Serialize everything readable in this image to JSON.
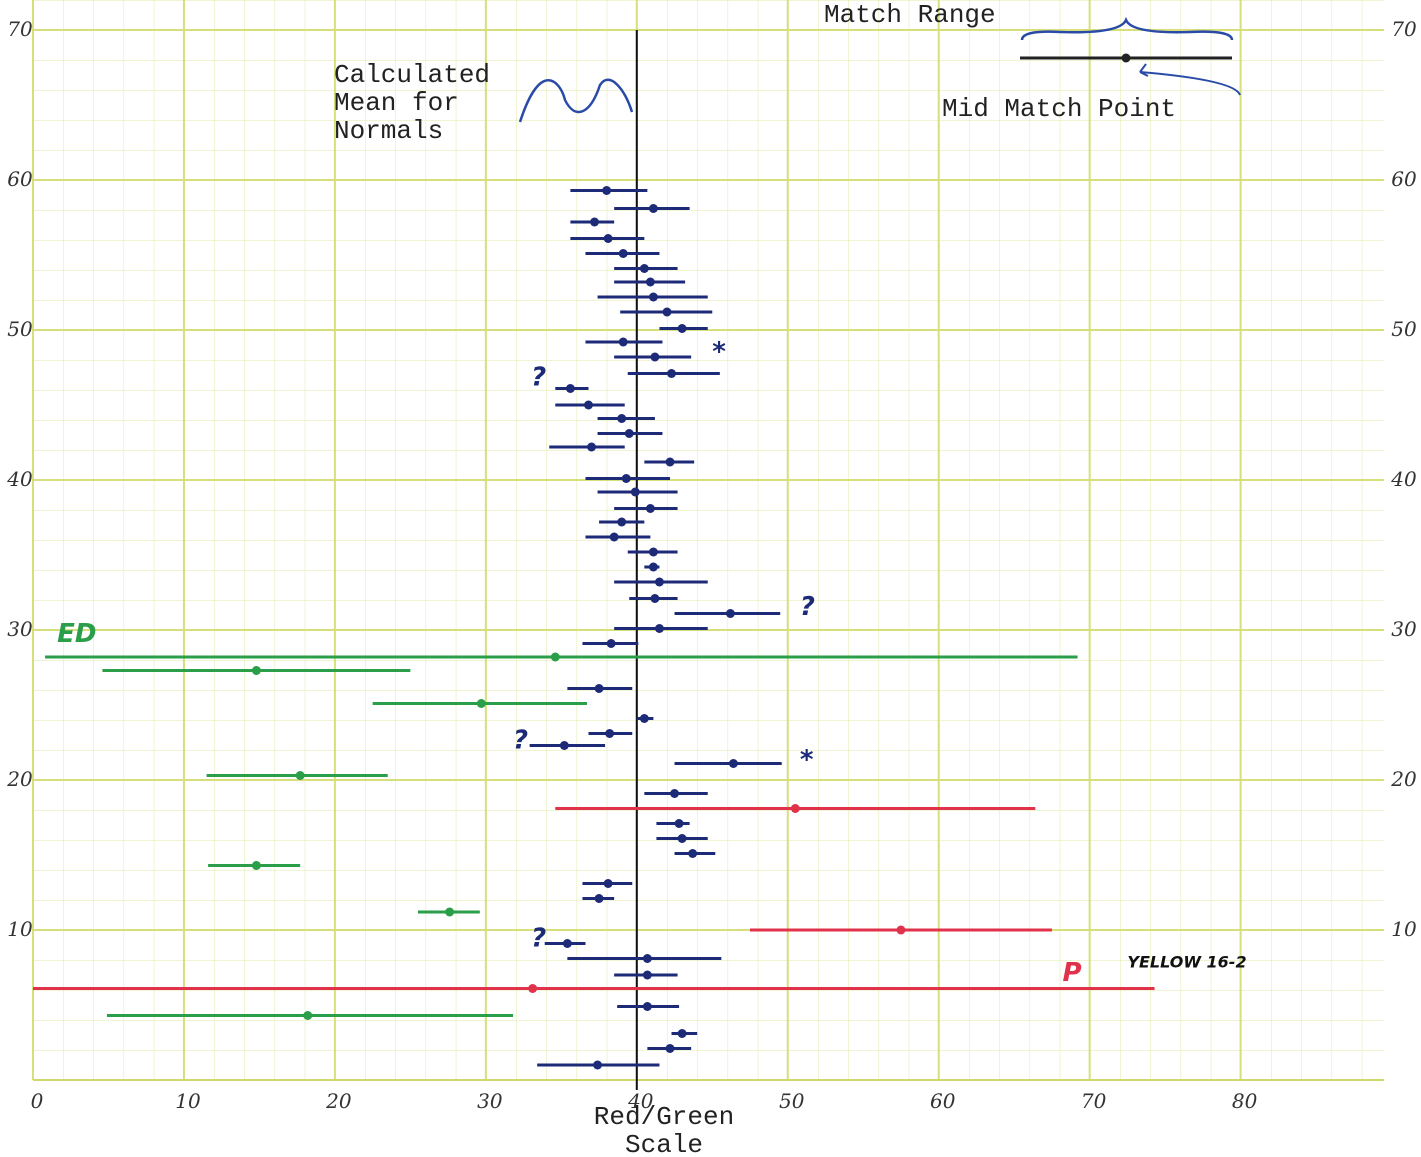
{
  "chart_data": {
    "type": "range-dot",
    "xlabel": "Red/Green Scale",
    "xlim": [
      0,
      89.5
    ],
    "ylim": [
      0,
      72
    ],
    "xticks": [
      0,
      10,
      20,
      30,
      40,
      50,
      60,
      70,
      80
    ],
    "yticks": [
      10,
      20,
      30,
      40,
      50,
      60,
      70
    ],
    "grid": true,
    "reference_line": {
      "x": 40,
      "label": "Calculated Mean for Normals"
    },
    "key": {
      "range_label": "Match Range",
      "point_label": "Mid Match Point"
    },
    "series": [
      {
        "color": "#1c2a78",
        "y": [
          59.3,
          58.1,
          57.2,
          56.1,
          55.1,
          54.1,
          53.2,
          52.2,
          51.2,
          50.1,
          49.2,
          48.2,
          47.1,
          46.1,
          45.0,
          44.1,
          43.1,
          42.2,
          41.2,
          40.1,
          39.2,
          38.1,
          37.2,
          36.2,
          35.2,
          34.2,
          33.2,
          32.1,
          31.1,
          30.1,
          29.1,
          26.1,
          24.1,
          23.1,
          22.3,
          21.1,
          19.1,
          17.1,
          16.1,
          15.1,
          13.1,
          12.1,
          9.1,
          8.1,
          7.0,
          4.9,
          3.1,
          2.1,
          1.0
        ],
        "x": [
          38.0,
          41.1,
          37.2,
          38.1,
          39.1,
          40.5,
          40.9,
          41.1,
          42.0,
          43.0,
          39.1,
          41.2,
          42.3,
          35.6,
          36.8,
          39.0,
          39.5,
          37.0,
          42.2,
          39.3,
          39.9,
          40.9,
          39.0,
          38.5,
          41.1,
          41.1,
          41.5,
          41.2,
          46.2,
          41.5,
          38.3,
          37.5,
          40.5,
          38.2,
          35.2,
          46.4,
          42.5,
          42.8,
          43.0,
          43.7,
          38.1,
          37.5,
          35.4,
          40.7,
          40.7,
          40.7,
          43.0,
          42.2,
          37.4
        ],
        "x_low": [
          35.6,
          38.5,
          35.6,
          35.6,
          36.6,
          38.5,
          38.5,
          37.4,
          38.9,
          41.5,
          36.6,
          38.5,
          39.4,
          34.6,
          34.6,
          37.4,
          37.4,
          34.2,
          40.5,
          36.6,
          37.4,
          38.5,
          37.5,
          36.6,
          39.4,
          40.5,
          38.5,
          39.5,
          42.5,
          38.5,
          36.4,
          35.4,
          40.0,
          36.8,
          32.9,
          42.5,
          40.5,
          41.3,
          41.3,
          42.5,
          36.4,
          36.4,
          33.9,
          35.4,
          38.5,
          38.7,
          42.3,
          40.7,
          33.4
        ],
        "x_high": [
          40.7,
          43.5,
          38.5,
          40.5,
          41.5,
          42.7,
          43.2,
          44.7,
          45.0,
          44.7,
          41.7,
          43.6,
          45.5,
          36.8,
          39.2,
          41.2,
          41.7,
          39.2,
          43.8,
          42.2,
          42.7,
          42.7,
          40.5,
          40.9,
          42.7,
          41.5,
          44.7,
          42.7,
          49.5,
          44.7,
          40.1,
          39.7,
          41.1,
          39.7,
          37.9,
          49.6,
          44.7,
          43.5,
          44.7,
          45.2,
          39.7,
          38.5,
          36.6,
          45.6,
          42.7,
          42.8,
          44.0,
          43.6,
          41.5
        ]
      },
      {
        "color": "#2a9e48",
        "y": [
          28.2,
          27.3,
          25.1,
          20.3,
          14.3,
          11.2,
          4.3
        ],
        "x": [
          34.6,
          14.8,
          29.7,
          17.7,
          14.8,
          27.6,
          18.2
        ],
        "x_low": [
          0.8,
          4.6,
          22.5,
          11.5,
          11.6,
          25.5,
          4.9
        ],
        "x_high": [
          69.2,
          25.0,
          36.7,
          23.5,
          17.7,
          29.6,
          31.8
        ]
      },
      {
        "color": "#e0324a",
        "y": [
          18.1,
          10.0,
          6.1
        ],
        "x": [
          50.5,
          57.5,
          33.1
        ],
        "x_low": [
          34.6,
          47.5,
          0.0
        ],
        "x_high": [
          66.4,
          67.5,
          74.3
        ]
      }
    ],
    "annotations": [
      {
        "text": "?",
        "x": 33.0,
        "y": 46.3,
        "color": "#1c2a78"
      },
      {
        "text": "*",
        "x": 45.0,
        "y": 48.0,
        "color": "#1c2a78"
      },
      {
        "text": "?",
        "x": 50.8,
        "y": 31.0,
        "color": "#1c2a78"
      },
      {
        "text": "?",
        "x": 31.8,
        "y": 22.1,
        "color": "#1c2a78"
      },
      {
        "text": "*",
        "x": 50.8,
        "y": 20.8,
        "color": "#1c2a78"
      },
      {
        "text": "?",
        "x": 33.0,
        "y": 8.9,
        "color": "#1c2a78"
      },
      {
        "text": "ED",
        "x": 1.6,
        "y": 29.2,
        "color": "#2a9e48"
      },
      {
        "text": "P",
        "x": 68.2,
        "y": 6.6,
        "color": "#e0324a"
      },
      {
        "text": "YELLOW 16-2",
        "x": 72.5,
        "y": 7.5,
        "color": "#111111"
      }
    ]
  }
}
